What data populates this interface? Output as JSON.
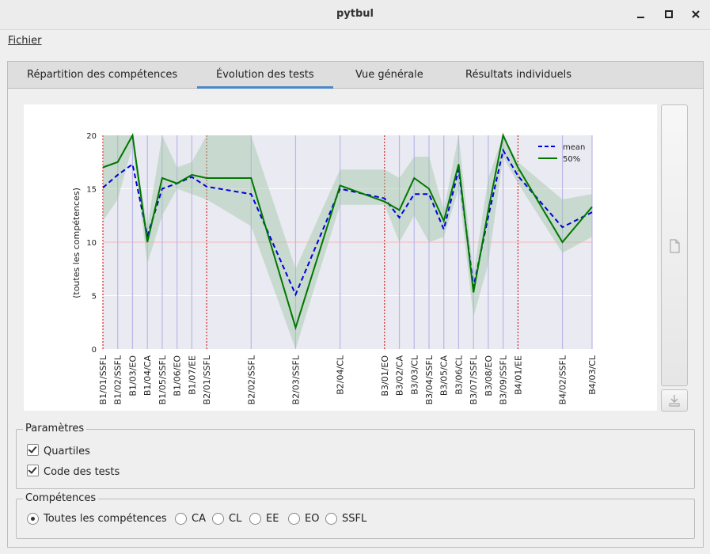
{
  "window": {
    "title": "pytbul",
    "minimize_icon": "minimize-icon",
    "maximize_icon": "maximize-icon",
    "close_icon": "close-icon"
  },
  "menu": {
    "fichier": "Fichier"
  },
  "tabs": [
    {
      "label": "Répartition des compétences",
      "active": false
    },
    {
      "label": "Évolution des tests",
      "active": true
    },
    {
      "label": "Vue générale",
      "active": false
    },
    {
      "label": "Résultats individuels",
      "active": false
    }
  ],
  "chart_data": {
    "type": "line",
    "ylabel": "(toutes les compétences)",
    "ylim": [
      0,
      20
    ],
    "yticks": [
      0,
      5,
      10,
      15,
      20
    ],
    "categories": [
      "B1/01/SSFL",
      "B1/02/SSFL",
      "B1/03/EO",
      "B1/04/CA",
      "B1/05/SSFL",
      "B1/06/EO",
      "B1/07/EE",
      "B2/01/SSFL",
      "B2/02/SSFL",
      "B2/03/SSFL",
      "B2/04/CL",
      "B3/01/EO",
      "B3/02/CA",
      "B3/03/CL",
      "B3/04/SSFL",
      "B3/05/CA",
      "B3/06/CL",
      "B3/07/SSFL",
      "B3/08/EO",
      "B3/09/SSFL",
      "B4/01/EE",
      "B4/02/SSFL",
      "B4/03/CL"
    ],
    "positions": [
      0,
      1,
      2,
      3,
      4,
      5,
      6,
      7,
      10,
      13,
      16,
      19,
      20,
      21,
      22,
      23,
      24,
      25,
      26,
      27,
      28,
      31,
      33
    ],
    "block_starts": [
      "B1/01/SSFL",
      "B2/01/SSFL",
      "B3/01/EO",
      "B4/01/EE"
    ],
    "reference_line": 10,
    "series": [
      {
        "name": "mean",
        "style": "dashed",
        "color": "#0000dd",
        "values": [
          15.1,
          16.3,
          17.3,
          10.6,
          15.0,
          15.5,
          16.1,
          15.2,
          14.5,
          5.1,
          15.0,
          14.1,
          12.3,
          14.5,
          14.5,
          11.2,
          16.8,
          5.8,
          12.4,
          18.6,
          16.2,
          11.4,
          12.8
        ]
      },
      {
        "name": "50%",
        "style": "solid",
        "color": "#007700",
        "values": [
          17.0,
          17.5,
          20.0,
          10.0,
          16.0,
          15.5,
          16.3,
          16.0,
          16.0,
          2.0,
          15.3,
          13.8,
          13.0,
          16.0,
          15.0,
          12.0,
          17.3,
          5.3,
          13.0,
          20.0,
          17.0,
          10.0,
          13.3
        ]
      }
    ],
    "quartile_band": {
      "color": "#9fc5a5",
      "q1": [
        12.0,
        14.0,
        19.0,
        8.0,
        12.5,
        15.0,
        14.5,
        14.0,
        11.5,
        0.0,
        13.5,
        13.5,
        10.0,
        12.5,
        10.0,
        10.5,
        15.0,
        3.0,
        8.0,
        18.0,
        15.5,
        9.0,
        10.5
      ],
      "q3": [
        20.0,
        20.0,
        20.0,
        11.5,
        20.0,
        17.0,
        17.5,
        20.0,
        20.0,
        7.5,
        16.8,
        16.8,
        16.0,
        18.0,
        18.0,
        13.0,
        20.0,
        7.0,
        16.0,
        20.0,
        17.5,
        14.0,
        14.5
      ]
    },
    "legend": {
      "placement": "top-right",
      "entries": [
        "mean",
        "50%"
      ]
    },
    "grid": true
  },
  "side_buttons": {
    "top_icon": "export-page-icon",
    "bottom_icon": "download-icon"
  },
  "parametres": {
    "title": "Paramètres",
    "quartiles": {
      "label": "Quartiles",
      "checked": true
    },
    "code_tests": {
      "label": "Code des tests",
      "checked": true
    }
  },
  "competences": {
    "title": "Compétences",
    "options": [
      {
        "label": "Toutes les compétences",
        "checked": true
      },
      {
        "label": "CA",
        "checked": false
      },
      {
        "label": "CL",
        "checked": false
      },
      {
        "label": "EE",
        "checked": false
      },
      {
        "label": "EO",
        "checked": false
      },
      {
        "label": "SSFL",
        "checked": false
      }
    ]
  }
}
